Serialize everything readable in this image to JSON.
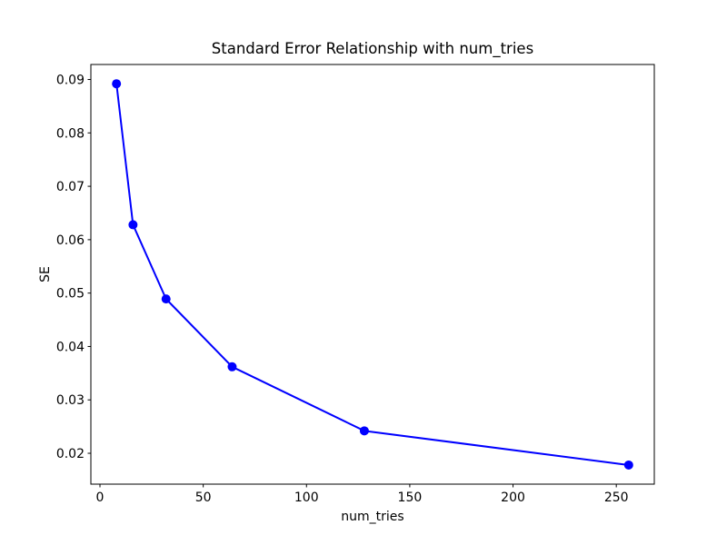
{
  "figure": {
    "background": "#ffffff",
    "frame_color": "#000000",
    "text_color": "#000000"
  },
  "chart_data": {
    "type": "line",
    "title": "Standard Error Relationship with num_tries",
    "xlabel": "num_tries",
    "ylabel": "SE",
    "x": [
      8,
      16,
      32,
      64,
      128,
      256
    ],
    "y": [
      0.0892,
      0.0628,
      0.0489,
      0.0362,
      0.0242,
      0.0178
    ],
    "line_color": "#0000ff",
    "line_width": 2,
    "marker": "circle",
    "marker_color": "#0000ff",
    "marker_radius": 5,
    "xlim": [
      -4.4,
      268.4
    ],
    "ylim": [
      0.01422,
      0.09281
    ],
    "xticks": [
      0,
      50,
      100,
      150,
      200,
      250
    ],
    "xtick_labels": [
      "0",
      "50",
      "100",
      "150",
      "200",
      "250"
    ],
    "yticks": [
      0.02,
      0.03,
      0.04,
      0.05,
      0.06,
      0.07,
      0.08,
      0.09
    ],
    "ytick_labels": [
      "0.02",
      "0.03",
      "0.04",
      "0.05",
      "0.06",
      "0.07",
      "0.08",
      "0.09"
    ],
    "grid": false,
    "legend_position": "none"
  }
}
